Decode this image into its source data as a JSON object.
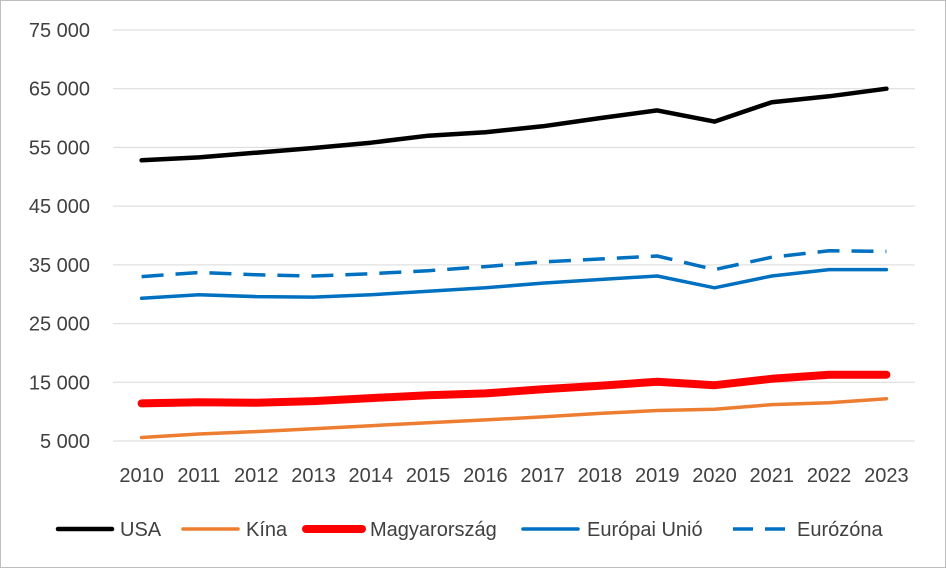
{
  "chart_data": {
    "type": "line",
    "title": "",
    "xlabel": "",
    "ylabel": "",
    "x": [
      "2010",
      "2011",
      "2012",
      "2013",
      "2014",
      "2015",
      "2016",
      "2017",
      "2018",
      "2019",
      "2020",
      "2021",
      "2022",
      "2023"
    ],
    "ylim": [
      5000,
      75000
    ],
    "yticks": [
      5000,
      15000,
      25000,
      35000,
      45000,
      55000,
      65000,
      75000
    ],
    "ytick_labels": [
      "5 000",
      "15 000",
      "25 000",
      "35 000",
      "45 000",
      "55 000",
      "65 000",
      "75 000"
    ],
    "grid": "horizontal",
    "legend_position": "bottom",
    "series": [
      {
        "name": "USA",
        "color": "#000000",
        "style": "solid",
        "width": "thick",
        "values": [
          52800,
          53300,
          54100,
          54900,
          55800,
          57000,
          57600,
          58600,
          60000,
          61300,
          59400,
          62700,
          63700,
          65000
        ]
      },
      {
        "name": "Kína",
        "color": "#ED7D31",
        "style": "solid",
        "width": "normal",
        "values": [
          5600,
          6200,
          6600,
          7100,
          7600,
          8100,
          8600,
          9100,
          9700,
          10200,
          10400,
          11200,
          11500,
          12200
        ]
      },
      {
        "name": "Magyarország",
        "color": "#FF0000",
        "style": "solid",
        "width": "heavy",
        "values": [
          11400,
          11600,
          11500,
          11800,
          12300,
          12800,
          13100,
          13800,
          14400,
          15100,
          14500,
          15600,
          16300,
          16300
        ]
      },
      {
        "name": "Európai Unió",
        "color": "#0070C0",
        "style": "solid",
        "width": "normal",
        "values": [
          29300,
          29900,
          29600,
          29500,
          29900,
          30500,
          31100,
          31900,
          32500,
          33100,
          31100,
          33100,
          34200,
          34200
        ]
      },
      {
        "name": "Eurózóna",
        "color": "#0070C0",
        "style": "dashed",
        "width": "normal",
        "values": [
          33000,
          33700,
          33300,
          33100,
          33500,
          34000,
          34700,
          35500,
          36000,
          36500,
          34200,
          36300,
          37400,
          37300
        ]
      }
    ]
  }
}
